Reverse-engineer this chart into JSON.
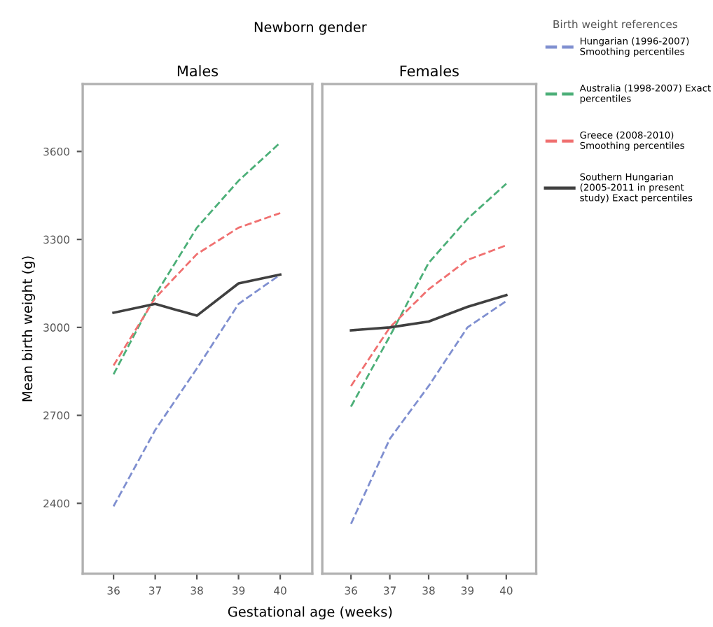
{
  "chart_data": [
    {
      "type": "line",
      "title": "Males",
      "annotations": [
        "Newborn gender"
      ],
      "xlabel": "Gestational age (weeks)",
      "ylabel": "Mean birth weight (g)",
      "x": [
        36,
        37,
        38,
        39,
        40
      ],
      "xlim": [
        35.26,
        40.77
      ],
      "xticks": [
        36,
        37,
        38,
        39,
        40
      ],
      "ylim": [
        2160,
        3830
      ],
      "yticks": [
        2400,
        2700,
        3000,
        3300,
        3600
      ],
      "legend": false,
      "grid": false,
      "series": [
        {
          "color": "#7f8fd0",
          "line_style": "dashed",
          "values": [
            2390,
            2650,
            2860,
            3080,
            3180
          ]
        },
        {
          "color": "#4caf78",
          "line_style": "dashed",
          "values": [
            2840,
            3110,
            3340,
            3500,
            3630
          ]
        },
        {
          "color": "#f07070",
          "line_style": "dashed",
          "values": [
            2870,
            3100,
            3250,
            3340,
            3390
          ]
        },
        {
          "color": "#404040",
          "line_style": "solid",
          "values": [
            3050,
            3080,
            3040,
            3150,
            3180
          ]
        }
      ]
    },
    {
      "type": "line",
      "title": "Females",
      "x": [
        36,
        37,
        38,
        39,
        40
      ],
      "xlim": [
        35.26,
        40.77
      ],
      "xticks": [
        36,
        37,
        38,
        39,
        40
      ],
      "ylim": [
        2160,
        3830
      ],
      "yticks": [
        2400,
        2700,
        3000,
        3300,
        3600
      ],
      "tick_labels": "x",
      "legend": "right",
      "legend_title": "Birth weight references",
      "grid": false,
      "series": [
        {
          "name": "Hungarian (1996-2007) Smoothing percentiles",
          "color": "#7f8fd0",
          "line_style": "dashed",
          "values": [
            2330,
            2620,
            2800,
            3000,
            3090
          ]
        },
        {
          "name": "Australia (1998-2007) Exact percentiles",
          "color": "#4caf78",
          "line_style": "dashed",
          "values": [
            2730,
            2970,
            3220,
            3370,
            3490
          ]
        },
        {
          "name": "Greece (2008-2010) Smoothing percentiles",
          "color": "#f07070",
          "line_style": "dashed",
          "values": [
            2800,
            3000,
            3130,
            3230,
            3280
          ]
        },
        {
          "name": "Southern Hungarian (2005-2011 in present study) Exact percentiles",
          "color": "#404040",
          "line_style": "solid",
          "values": [
            2990,
            3000,
            3020,
            3070,
            3110
          ]
        }
      ]
    }
  ]
}
